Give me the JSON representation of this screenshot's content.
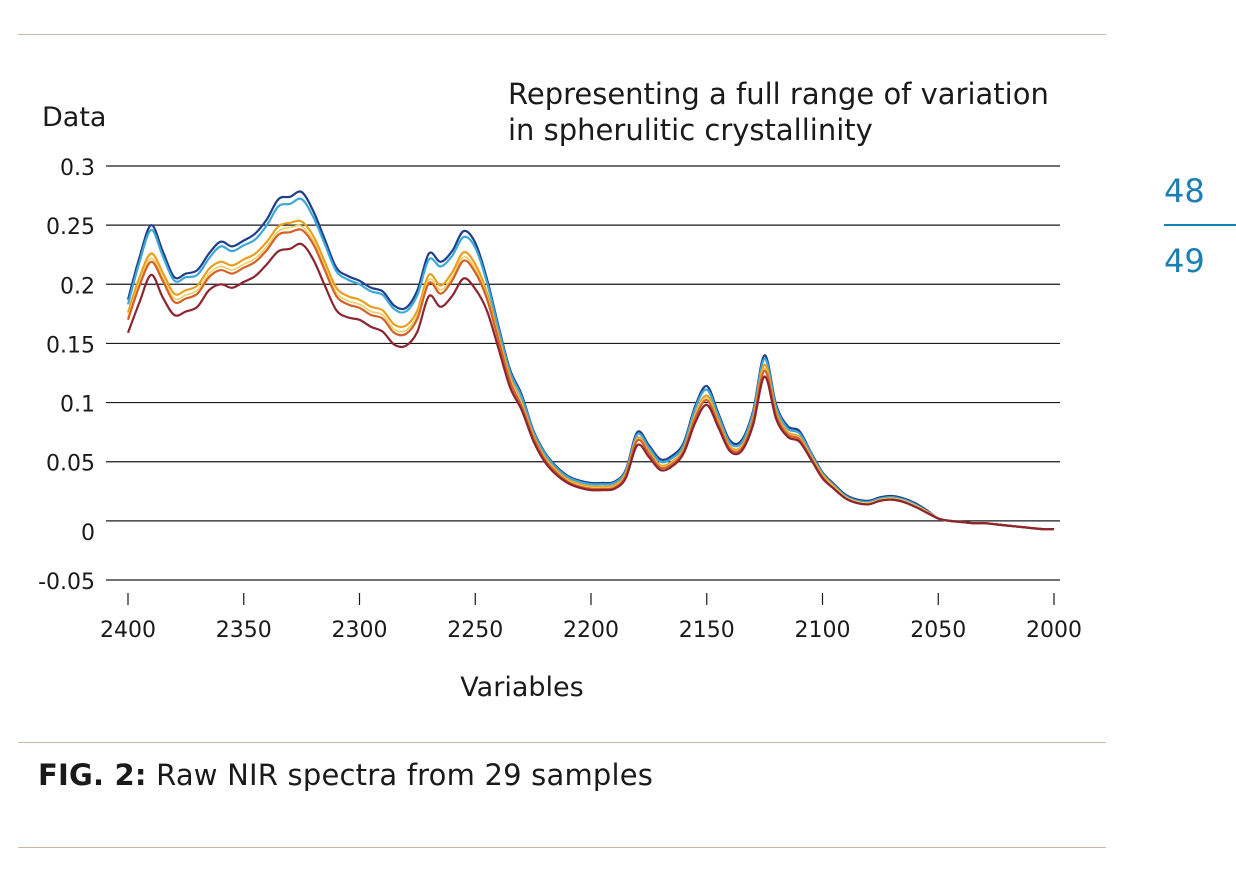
{
  "figure": {
    "label": "FIG. 2:",
    "caption": "Raw NIR spectra from 29 samples"
  },
  "pages": {
    "left": "48",
    "right": "49"
  },
  "colors": {
    "rule": "#c9b8ab",
    "page_number": "#1a7fb4",
    "gridline": "#1a1a1a"
  },
  "chart_data": {
    "type": "line",
    "title": "Representing a full range of variation\nin spherulitic crystallinity",
    "ylabel": "Data",
    "xlabel": "Variables",
    "xlim": [
      2400,
      2000
    ],
    "x_reversed": true,
    "ylim": [
      -0.05,
      0.3
    ],
    "grid": "horizontal",
    "xticks": [
      2400,
      2350,
      2300,
      2250,
      2200,
      2150,
      2100,
      2050,
      2000
    ],
    "yticks": [
      -0.05,
      0,
      0.05,
      0.1,
      0.15,
      0.2,
      0.25,
      0.3
    ],
    "ytick_labels": [
      "-0.05",
      "0",
      "0.05",
      "0.1",
      "0.15",
      "0.2",
      "0.25",
      "0.3"
    ],
    "x": [
      2400,
      2395,
      2390,
      2385,
      2380,
      2375,
      2370,
      2365,
      2360,
      2355,
      2350,
      2345,
      2340,
      2335,
      2330,
      2325,
      2320,
      2315,
      2310,
      2305,
      2300,
      2295,
      2290,
      2285,
      2280,
      2275,
      2270,
      2265,
      2260,
      2255,
      2250,
      2245,
      2240,
      2235,
      2230,
      2225,
      2220,
      2215,
      2210,
      2205,
      2200,
      2195,
      2190,
      2185,
      2180,
      2175,
      2170,
      2165,
      2160,
      2155,
      2150,
      2145,
      2140,
      2135,
      2130,
      2125,
      2120,
      2115,
      2110,
      2105,
      2100,
      2095,
      2090,
      2085,
      2080,
      2075,
      2070,
      2065,
      2060,
      2055,
      2050,
      2045,
      2040,
      2035,
      2030,
      2025,
      2020,
      2015,
      2010,
      2005,
      2000
    ],
    "series": [
      {
        "color": "#1f3f8a",
        "values": [
          0.187,
          0.223,
          0.25,
          0.228,
          0.206,
          0.209,
          0.212,
          0.226,
          0.236,
          0.232,
          0.237,
          0.243,
          0.255,
          0.272,
          0.274,
          0.278,
          0.262,
          0.238,
          0.214,
          0.207,
          0.203,
          0.197,
          0.194,
          0.182,
          0.18,
          0.195,
          0.226,
          0.219,
          0.228,
          0.245,
          0.235,
          0.205,
          0.165,
          0.128,
          0.107,
          0.077,
          0.058,
          0.046,
          0.038,
          0.034,
          0.032,
          0.032,
          0.033,
          0.043,
          0.075,
          0.064,
          0.052,
          0.055,
          0.066,
          0.097,
          0.114,
          0.091,
          0.068,
          0.068,
          0.093,
          0.14,
          0.098,
          0.08,
          0.076,
          0.058,
          0.041,
          0.031,
          0.022,
          0.018,
          0.017,
          0.02,
          0.021,
          0.019,
          0.015,
          0.009,
          0.002,
          0.0,
          -0.001,
          -0.002,
          -0.002,
          -0.003,
          -0.004,
          -0.005,
          -0.006,
          -0.007,
          -0.007
        ]
      },
      {
        "color": "#3ba8d8",
        "values": [
          0.183,
          0.219,
          0.246,
          0.224,
          0.203,
          0.206,
          0.208,
          0.222,
          0.232,
          0.228,
          0.233,
          0.238,
          0.25,
          0.266,
          0.268,
          0.272,
          0.257,
          0.234,
          0.211,
          0.204,
          0.2,
          0.194,
          0.191,
          0.179,
          0.177,
          0.191,
          0.221,
          0.215,
          0.224,
          0.24,
          0.231,
          0.202,
          0.163,
          0.126,
          0.105,
          0.076,
          0.057,
          0.045,
          0.037,
          0.033,
          0.031,
          0.031,
          0.032,
          0.042,
          0.073,
          0.062,
          0.05,
          0.053,
          0.064,
          0.095,
          0.111,
          0.089,
          0.066,
          0.066,
          0.091,
          0.137,
          0.096,
          0.078,
          0.074,
          0.057,
          0.04,
          0.03,
          0.021,
          0.017,
          0.016,
          0.019,
          0.02,
          0.018,
          0.014,
          0.008,
          0.002,
          0.0,
          -0.001,
          -0.002,
          -0.002,
          -0.003,
          -0.004,
          -0.005,
          -0.006,
          -0.007,
          -0.007
        ]
      },
      {
        "color": "#e8a020",
        "values": [
          0.176,
          0.206,
          0.226,
          0.21,
          0.192,
          0.195,
          0.199,
          0.213,
          0.219,
          0.216,
          0.221,
          0.226,
          0.236,
          0.249,
          0.252,
          0.253,
          0.241,
          0.219,
          0.197,
          0.19,
          0.187,
          0.181,
          0.178,
          0.166,
          0.165,
          0.178,
          0.208,
          0.199,
          0.21,
          0.227,
          0.217,
          0.193,
          0.157,
          0.122,
          0.1,
          0.073,
          0.054,
          0.043,
          0.035,
          0.031,
          0.029,
          0.029,
          0.03,
          0.04,
          0.07,
          0.059,
          0.047,
          0.05,
          0.061,
          0.09,
          0.106,
          0.085,
          0.063,
          0.063,
          0.087,
          0.132,
          0.092,
          0.075,
          0.071,
          0.055,
          0.039,
          0.029,
          0.02,
          0.016,
          0.015,
          0.018,
          0.019,
          0.017,
          0.013,
          0.008,
          0.002,
          0.0,
          -0.001,
          -0.002,
          -0.002,
          -0.003,
          -0.004,
          -0.005,
          -0.006,
          -0.007,
          -0.007
        ]
      },
      {
        "color": "#f0d060",
        "values": [
          0.172,
          0.202,
          0.222,
          0.206,
          0.188,
          0.191,
          0.195,
          0.209,
          0.215,
          0.212,
          0.217,
          0.222,
          0.232,
          0.245,
          0.248,
          0.249,
          0.237,
          0.215,
          0.193,
          0.186,
          0.183,
          0.177,
          0.174,
          0.162,
          0.161,
          0.174,
          0.204,
          0.195,
          0.206,
          0.223,
          0.213,
          0.19,
          0.155,
          0.12,
          0.099,
          0.072,
          0.053,
          0.042,
          0.034,
          0.03,
          0.028,
          0.028,
          0.029,
          0.039,
          0.069,
          0.058,
          0.046,
          0.049,
          0.06,
          0.089,
          0.104,
          0.083,
          0.062,
          0.062,
          0.085,
          0.129,
          0.09,
          0.074,
          0.07,
          0.054,
          0.038,
          0.028,
          0.02,
          0.016,
          0.015,
          0.018,
          0.019,
          0.017,
          0.013,
          0.008,
          0.002,
          0.0,
          -0.001,
          -0.002,
          -0.002,
          -0.003,
          -0.004,
          -0.005,
          -0.006,
          -0.007,
          -0.007
        ]
      },
      {
        "color": "#d4602a",
        "values": [
          0.17,
          0.199,
          0.219,
          0.203,
          0.185,
          0.188,
          0.192,
          0.206,
          0.212,
          0.209,
          0.214,
          0.219,
          0.229,
          0.242,
          0.244,
          0.246,
          0.234,
          0.212,
          0.19,
          0.183,
          0.18,
          0.174,
          0.171,
          0.159,
          0.158,
          0.171,
          0.201,
          0.192,
          0.203,
          0.22,
          0.21,
          0.188,
          0.153,
          0.118,
          0.097,
          0.071,
          0.052,
          0.041,
          0.033,
          0.029,
          0.027,
          0.027,
          0.028,
          0.038,
          0.068,
          0.057,
          0.045,
          0.048,
          0.059,
          0.087,
          0.102,
          0.082,
          0.061,
          0.061,
          0.084,
          0.127,
          0.089,
          0.073,
          0.069,
          0.053,
          0.037,
          0.027,
          0.019,
          0.015,
          0.014,
          0.017,
          0.018,
          0.016,
          0.012,
          0.007,
          0.002,
          0.0,
          -0.001,
          -0.002,
          -0.002,
          -0.003,
          -0.004,
          -0.005,
          -0.006,
          -0.007,
          -0.007
        ]
      },
      {
        "color": "#8b2530",
        "values": [
          0.159,
          0.185,
          0.208,
          0.189,
          0.174,
          0.177,
          0.181,
          0.195,
          0.2,
          0.197,
          0.202,
          0.207,
          0.217,
          0.228,
          0.23,
          0.234,
          0.221,
          0.199,
          0.178,
          0.172,
          0.17,
          0.164,
          0.16,
          0.149,
          0.148,
          0.16,
          0.19,
          0.181,
          0.19,
          0.205,
          0.196,
          0.178,
          0.146,
          0.113,
          0.094,
          0.068,
          0.05,
          0.039,
          0.032,
          0.028,
          0.026,
          0.026,
          0.027,
          0.036,
          0.064,
          0.054,
          0.043,
          0.046,
          0.057,
          0.083,
          0.098,
          0.079,
          0.059,
          0.059,
          0.081,
          0.122,
          0.086,
          0.071,
          0.067,
          0.052,
          0.036,
          0.027,
          0.019,
          0.015,
          0.014,
          0.017,
          0.018,
          0.016,
          0.012,
          0.007,
          0.002,
          0.0,
          -0.001,
          -0.002,
          -0.002,
          -0.003,
          -0.004,
          -0.005,
          -0.006,
          -0.007,
          -0.007
        ]
      }
    ]
  }
}
